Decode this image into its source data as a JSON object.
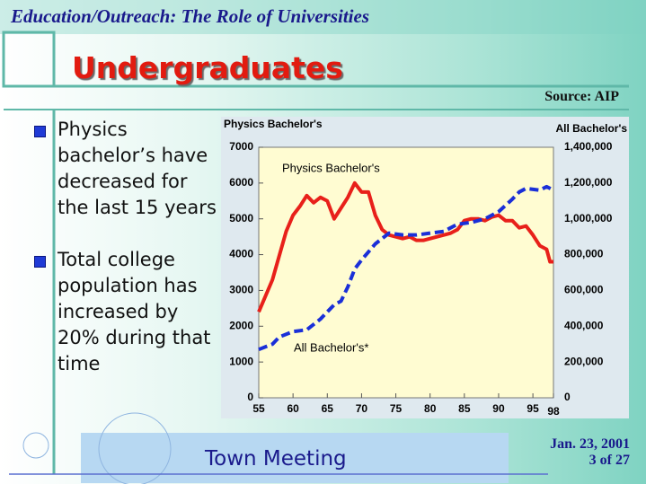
{
  "slide": {
    "header": "Education/Outreach:  The Role of Universities",
    "title": "Undergraduates",
    "source": "Source: AIP",
    "bullets": [
      "Physics bachelor’s have decreased for the last 15 years",
      "Total college population has increased by 20% during that time"
    ],
    "footer": "Town Meeting",
    "date": "Jan. 23, 2001",
    "page": "3 of 27"
  },
  "chart_data": {
    "type": "line",
    "y_label": "Physics Bachelor's",
    "y2_label": "All Bachelor's",
    "series": [
      {
        "name": "Physics Bachelor's",
        "color": "#e8201a",
        "x": [
          55,
          57,
          59,
          60,
          61,
          62,
          63,
          64,
          65,
          66,
          67,
          68,
          69,
          70,
          71,
          72,
          73,
          74,
          75,
          76,
          77,
          78,
          79,
          80,
          81,
          82,
          83,
          84,
          85,
          86,
          87,
          88,
          89,
          90,
          91,
          92,
          93,
          94,
          95,
          96,
          97,
          97.5,
          98
        ],
        "values": [
          2400,
          3300,
          4650,
          5100,
          5350,
          5650,
          5450,
          5600,
          5500,
          5000,
          5300,
          5600,
          6000,
          5750,
          5750,
          5100,
          4700,
          4550,
          4500,
          4450,
          4500,
          4400,
          4400,
          4450,
          4500,
          4550,
          4600,
          4700,
          4950,
          5000,
          5000,
          4950,
          5050,
          5100,
          4950,
          4950,
          4750,
          4800,
          4550,
          4250,
          4150,
          3800,
          3800
        ]
      },
      {
        "name": "All Bachelor's*",
        "color": "#1a2fd8",
        "axis": "y2",
        "x": [
          55,
          57,
          58,
          60,
          62,
          63,
          64,
          65,
          66,
          67,
          68,
          69,
          70,
          72,
          74,
          76,
          78,
          80,
          82,
          84,
          86,
          88,
          90,
          92,
          93,
          94,
          96,
          97,
          98
        ],
        "values": [
          270000,
          300000,
          340000,
          370000,
          380000,
          410000,
          440000,
          480000,
          520000,
          540000,
          620000,
          720000,
          770000,
          860000,
          920000,
          910000,
          910000,
          920000,
          930000,
          970000,
          980000,
          1000000,
          1040000,
          1110000,
          1150000,
          1170000,
          1160000,
          1180000,
          1160000
        ]
      }
    ],
    "xlim": [
      55,
      98
    ],
    "xticks": [
      55,
      60,
      65,
      70,
      75,
      80,
      85,
      90,
      95,
      98
    ],
    "ylim": [
      0,
      7000
    ],
    "yticks": [
      0,
      1000,
      2000,
      3000,
      4000,
      5000,
      6000,
      7000
    ],
    "y2lim": [
      0,
      1400000
    ],
    "y2ticks": [
      0,
      {
        "value": 200000,
        "label": "200,000"
      },
      {
        "value": 400000,
        "label": "400,000"
      },
      {
        "value": 600000,
        "label": "600,000"
      },
      {
        "value": 800000,
        "label": "800,000"
      },
      {
        "value": 1000000,
        "label": "1,000,000"
      },
      {
        "value": 1200000,
        "label": "1,200,000"
      },
      {
        "value": 1400000,
        "label": "1,400,000"
      }
    ]
  }
}
